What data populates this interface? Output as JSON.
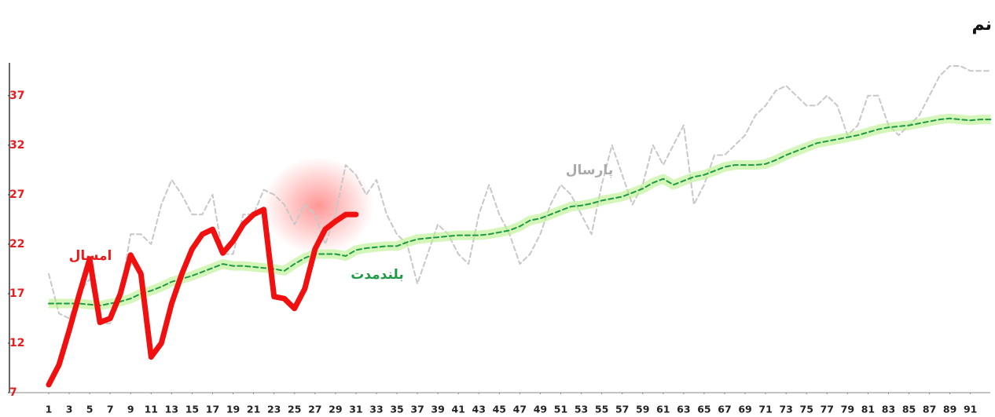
{
  "chart_data": {
    "type": "line",
    "title": "نم",
    "x": [
      1,
      2,
      3,
      4,
      5,
      6,
      7,
      8,
      9,
      10,
      11,
      12,
      13,
      14,
      15,
      16,
      17,
      18,
      19,
      20,
      21,
      22,
      23,
      24,
      25,
      26,
      27,
      28,
      29,
      30,
      31,
      32,
      33,
      34,
      35,
      36,
      37,
      38,
      39,
      40,
      41,
      42,
      43,
      44,
      45,
      46,
      47,
      48,
      49,
      50,
      51,
      52,
      53,
      54,
      55,
      56,
      57,
      58,
      59,
      60,
      61,
      62,
      63,
      64,
      65,
      66,
      67,
      68,
      69,
      70,
      71,
      72,
      73,
      74,
      75,
      76,
      77,
      78,
      79,
      80,
      81,
      82,
      83,
      84,
      85,
      86,
      87,
      88,
      89,
      90,
      91,
      92,
      93
    ],
    "xlim": [
      1,
      93
    ],
    "xticks": [
      1,
      3,
      5,
      7,
      9,
      11,
      13,
      15,
      17,
      19,
      21,
      23,
      25,
      27,
      29,
      31,
      33,
      35,
      37,
      39,
      41,
      43,
      45,
      47,
      49,
      51,
      53,
      55,
      57,
      59,
      61,
      63,
      65,
      67,
      69,
      71,
      73,
      75,
      77,
      79,
      81,
      83,
      85,
      87,
      89,
      91
    ],
    "ylim": [
      7,
      40
    ],
    "yticks": [
      7,
      12,
      17,
      22,
      27,
      32,
      37
    ],
    "series": [
      {
        "name": "پارسال",
        "color": "#c8c8c8",
        "style": "dashed",
        "values": [
          19,
          15,
          14.5,
          17,
          18.5,
          14,
          14,
          17,
          23,
          23,
          22,
          26,
          28.5,
          27,
          25,
          25,
          27,
          21,
          21,
          25,
          25,
          27.5,
          27,
          26,
          24,
          26,
          25,
          22,
          25,
          30,
          29,
          27,
          28.5,
          25,
          23,
          22,
          18,
          21,
          24,
          23,
          21,
          20,
          25,
          28,
          25,
          23,
          20,
          21,
          23,
          26,
          28,
          27,
          25,
          23,
          28,
          32,
          29,
          26,
          28,
          32,
          30,
          32,
          34,
          26,
          28,
          31,
          31,
          32,
          33,
          35,
          36,
          37.5,
          38,
          37,
          36,
          36,
          37,
          36,
          33,
          34,
          37,
          37,
          34,
          33,
          34,
          35,
          37,
          39,
          40,
          40,
          39.5,
          39.5,
          39.5
        ]
      },
      {
        "name": "بلندمدت",
        "color": "#1e9a47",
        "style": "dashed",
        "values": [
          16,
          16,
          16,
          16,
          15.9,
          15.8,
          16,
          16.2,
          16.5,
          17,
          17.3,
          17.7,
          18.2,
          18.5,
          18.8,
          19.2,
          19.6,
          20,
          19.8,
          19.8,
          19.7,
          19.6,
          19.5,
          19.3,
          20,
          20.6,
          21,
          21,
          21,
          20.8,
          21.4,
          21.6,
          21.7,
          21.8,
          21.8,
          22.2,
          22.5,
          22.6,
          22.7,
          22.8,
          22.9,
          22.9,
          22.9,
          23,
          23.2,
          23.4,
          23.8,
          24.4,
          24.6,
          25,
          25.4,
          25.8,
          25.9,
          26.1,
          26.4,
          26.6,
          26.8,
          27.2,
          27.6,
          28.2,
          28.6,
          28,
          28.4,
          28.8,
          29,
          29.4,
          29.8,
          30,
          30,
          30,
          30.1,
          30.5,
          31,
          31.4,
          31.8,
          32.2,
          32.4,
          32.6,
          32.8,
          33,
          33.3,
          33.6,
          33.8,
          33.9,
          34,
          34.2,
          34.4,
          34.6,
          34.7,
          34.6,
          34.5,
          34.6,
          34.6
        ]
      },
      {
        "name": "امسال",
        "color": "#f01010",
        "style": "solid",
        "values": [
          7.8,
          9.8,
          13.3,
          17,
          20.5,
          14.1,
          14.5,
          17,
          20.9,
          19,
          10.6,
          12,
          16,
          19,
          21.5,
          23,
          23.5,
          21.1,
          22.3,
          24,
          25,
          25.5,
          16.7,
          16.5,
          15.5,
          17.5,
          21.5,
          23.5,
          24.3,
          25,
          25,
          null,
          null,
          null,
          null,
          null,
          null,
          null,
          null,
          null,
          null,
          null,
          null,
          null,
          null,
          null,
          null,
          null,
          null,
          null,
          null,
          null,
          null,
          null,
          null,
          null,
          null,
          null,
          null,
          null,
          null,
          null,
          null,
          null,
          null,
          null,
          null,
          null,
          null,
          null,
          null,
          null,
          null,
          null,
          null,
          null,
          null,
          null,
          null,
          null,
          null,
          null,
          null,
          null,
          null,
          null,
          null,
          null,
          null,
          null,
          null,
          null,
          null
        ]
      }
    ]
  }
}
